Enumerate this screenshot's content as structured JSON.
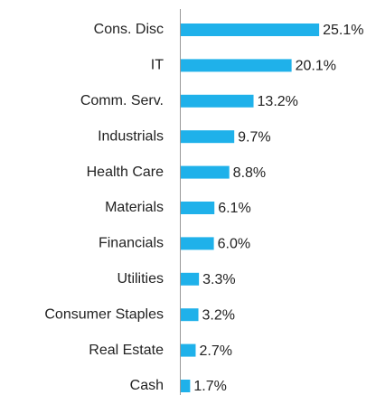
{
  "chart_data": {
    "type": "bar",
    "orientation": "horizontal",
    "categories": [
      "Cons. Disc",
      "IT",
      "Comm. Serv.",
      "Industrials",
      "Health Care",
      "Materials",
      "Financials",
      "Utilities",
      "Consumer Staples",
      "Real Estate",
      "Cash"
    ],
    "values": [
      25.1,
      20.1,
      13.2,
      9.7,
      8.8,
      6.1,
      6.0,
      3.3,
      3.2,
      2.7,
      1.7
    ],
    "value_labels": [
      "25.1%",
      "20.1%",
      "13.2%",
      "9.7%",
      "8.8%",
      "6.1%",
      "6.0%",
      "3.3%",
      "3.2%",
      "2.7%",
      "1.7%"
    ],
    "color": "#1fb1ea",
    "xlim": [
      0,
      35
    ]
  }
}
